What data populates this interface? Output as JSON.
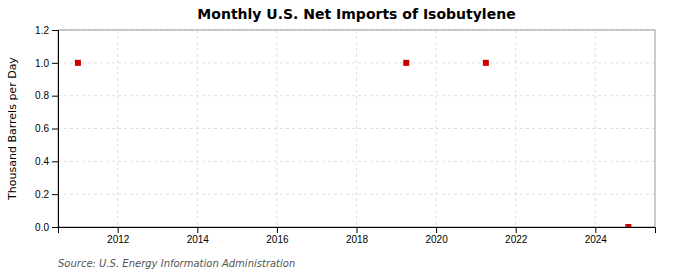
{
  "chart_data": {
    "type": "scatter",
    "title": "Monthly U.S. Net Imports of Isobutylene",
    "y_label": "Thousand Barrels per Day",
    "annotations": [
      "Source: U.S. Energy Information Administration"
    ],
    "x": [
      2011.0,
      2019.25,
      2021.25,
      2024.83
    ],
    "values": [
      1.0,
      1.0,
      1.0,
      0.0
    ],
    "color": "#cc0000",
    "marker": "square",
    "xlim": [
      2010.5,
      2025.5
    ],
    "ylim": [
      0.0,
      1.2
    ],
    "xticks": [
      2012,
      2014,
      2016,
      2018,
      2020,
      2022,
      2024
    ],
    "yticks": [
      {
        "value": 0.0,
        "label": "0.0"
      },
      0.2,
      0.4,
      0.6,
      0.8,
      {
        "value": 1.0,
        "label": "1.0"
      },
      1.2
    ],
    "grid": true
  }
}
